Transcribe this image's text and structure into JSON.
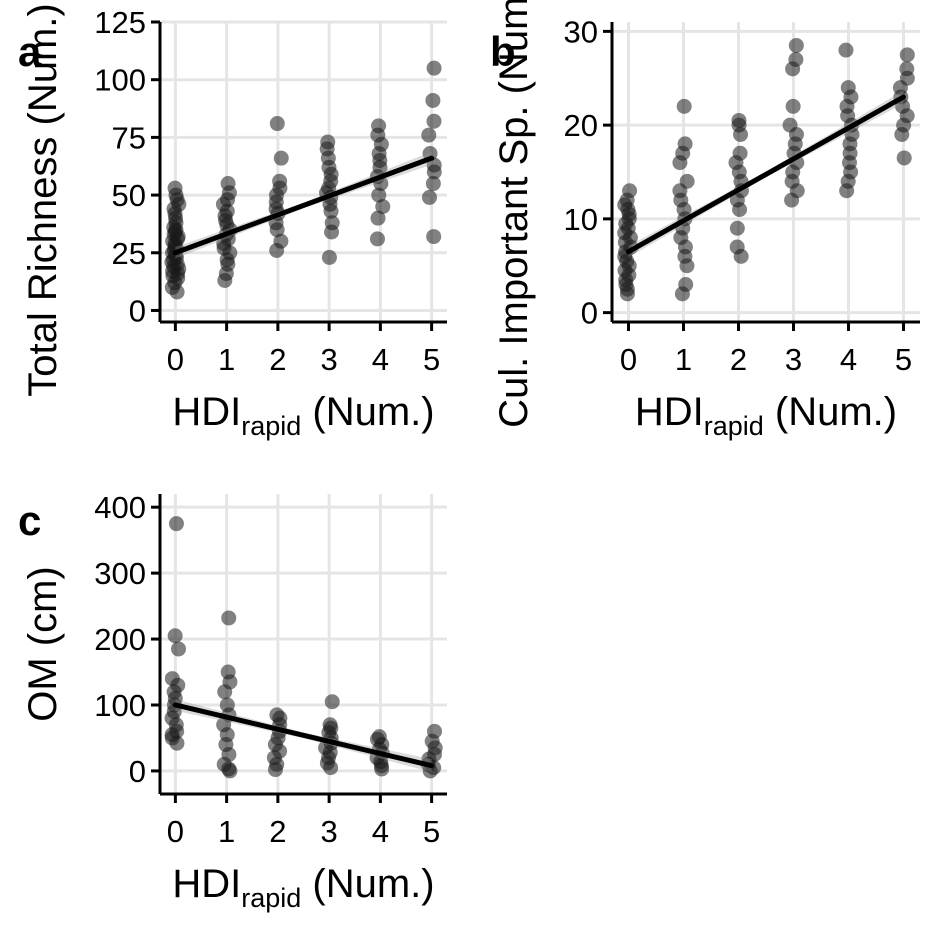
{
  "chart_data": [
    {
      "id": "a",
      "type": "scatter",
      "panel_label": "a",
      "xlabel_main": "HDI",
      "xlabel_sub": "rapid",
      "xlabel_tail": " (Num.)",
      "ylabel": "Total Richness (Num.)",
      "x_ticks": [
        0,
        1,
        2,
        3,
        4,
        5
      ],
      "y_ticks": [
        0,
        25,
        50,
        75,
        100,
        125
      ],
      "xlim": [
        -0.3,
        5.3
      ],
      "ylim": [
        -5,
        125
      ],
      "fit": {
        "x": [
          0,
          5
        ],
        "y": [
          25,
          66
        ]
      },
      "points": [
        {
          "x": 0,
          "y": [
            8,
            10,
            12,
            14,
            15,
            16,
            17,
            18,
            19,
            20,
            21,
            22,
            23,
            24,
            25,
            26,
            27,
            28,
            29,
            30,
            31,
            32,
            33,
            34,
            35,
            36,
            38,
            40,
            42,
            44,
            46,
            48,
            50,
            53
          ]
        },
        {
          "x": 1,
          "y": [
            13,
            16,
            20,
            22,
            25,
            27,
            29,
            31,
            33,
            35,
            37,
            39,
            41,
            43,
            46,
            48,
            51,
            55
          ]
        },
        {
          "x": 2,
          "y": [
            26,
            30,
            35,
            38,
            42,
            44,
            47,
            50,
            53,
            56,
            66,
            81
          ]
        },
        {
          "x": 3,
          "y": [
            23,
            34,
            38,
            43,
            46,
            49,
            51,
            53,
            56,
            59,
            62,
            66,
            70,
            73
          ]
        },
        {
          "x": 4,
          "y": [
            31,
            40,
            45,
            50,
            55,
            58,
            62,
            65,
            68,
            72,
            76,
            80
          ]
        },
        {
          "x": 5,
          "y": [
            32,
            49,
            55,
            60,
            63,
            68,
            76,
            82,
            91,
            105
          ]
        }
      ]
    },
    {
      "id": "b",
      "type": "scatter",
      "panel_label": "b",
      "xlabel_main": "HDI",
      "xlabel_sub": "rapid",
      "xlabel_tail": " (Num.)",
      "ylabel": "Cul. Important Sp. (Num.)",
      "x_ticks": [
        0,
        1,
        2,
        3,
        4,
        5
      ],
      "y_ticks": [
        0,
        10,
        20,
        30
      ],
      "xlim": [
        -0.3,
        5.3
      ],
      "ylim": [
        -1,
        31
      ],
      "fit": {
        "x": [
          0,
          5
        ],
        "y": [
          6.5,
          23
        ]
      },
      "points": [
        {
          "x": 0,
          "y": [
            2,
            2.5,
            3,
            3.5,
            4,
            4.5,
            5,
            5.5,
            6,
            6.5,
            7,
            7.5,
            8,
            8.5,
            9,
            9.5,
            10,
            10.5,
            11,
            11.5,
            12,
            13
          ]
        },
        {
          "x": 1,
          "y": [
            2,
            3,
            5,
            6,
            7,
            8,
            9,
            10,
            11,
            12,
            13,
            14,
            16,
            17,
            18,
            22
          ]
        },
        {
          "x": 2,
          "y": [
            6,
            7,
            9,
            11,
            12,
            13,
            14,
            15,
            16,
            17,
            19,
            20,
            20.5
          ]
        },
        {
          "x": 3,
          "y": [
            12,
            13,
            14,
            15,
            16,
            17,
            18,
            19,
            20,
            22,
            26,
            27,
            28.5
          ]
        },
        {
          "x": 4,
          "y": [
            13,
            14,
            15,
            16,
            17,
            18,
            19,
            20,
            21,
            22,
            23,
            24,
            28
          ]
        },
        {
          "x": 5,
          "y": [
            16.5,
            19,
            20,
            21,
            22,
            23,
            24,
            25,
            26,
            27.5
          ]
        }
      ]
    },
    {
      "id": "c",
      "type": "scatter",
      "panel_label": "c",
      "xlabel_main": "HDI",
      "xlabel_sub": "rapid",
      "xlabel_tail": " (Num.)",
      "ylabel": "OM (cm)",
      "x_ticks": [
        0,
        1,
        2,
        3,
        4,
        5
      ],
      "y_ticks": [
        0,
        100,
        200,
        300,
        400
      ],
      "xlim": [
        -0.3,
        5.3
      ],
      "ylim": [
        -35,
        420
      ],
      "fit": {
        "x": [
          0,
          5
        ],
        "y": [
          100,
          8
        ]
      },
      "points": [
        {
          "x": 0,
          "y": [
            42,
            50,
            55,
            60,
            70,
            80,
            90,
            100,
            110,
            120,
            130,
            140,
            185,
            205,
            375
          ]
        },
        {
          "x": 1,
          "y": [
            0,
            3,
            10,
            25,
            40,
            55,
            70,
            85,
            100,
            120,
            135,
            150,
            232
          ]
        },
        {
          "x": 2,
          "y": [
            2,
            10,
            20,
            30,
            40,
            50,
            60,
            70,
            80,
            85
          ]
        },
        {
          "x": 3,
          "y": [
            5,
            12,
            20,
            28,
            35,
            42,
            50,
            58,
            65,
            70,
            105
          ]
        },
        {
          "x": 4,
          "y": [
            3,
            8,
            14,
            20,
            27,
            33,
            40,
            48,
            52
          ]
        },
        {
          "x": 5,
          "y": [
            0,
            5,
            10,
            18,
            25,
            35,
            45,
            60
          ]
        }
      ]
    }
  ]
}
